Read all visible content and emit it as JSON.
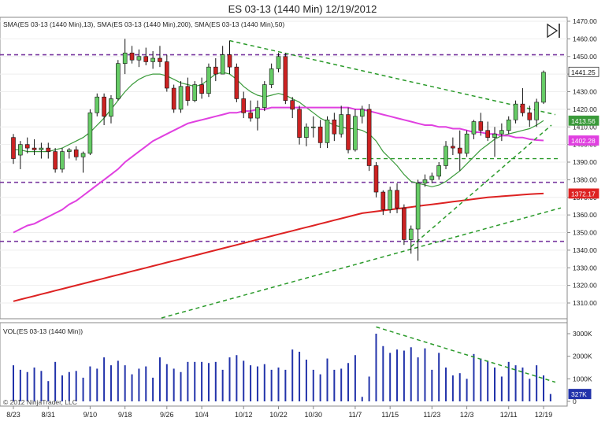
{
  "window": {
    "title": "ES 03-13 (1440 Min)  12/19/2012"
  },
  "price_panel": {
    "indicator_label": "SMA(ES 03-13 (1440 Min),13), SMA(ES 03-13 (1440 Min),200), SMA(ES 03-13 (1440 Min),50)",
    "last_price": "1441.25",
    "sma13_value": "1413.56",
    "sma50_value": "1402.28",
    "sma200_value": "1372.17",
    "horizontal_levels": [
      1451,
      1378.5,
      1345
    ],
    "support_level": 1392
  },
  "volume_panel": {
    "label": "VOL(ES 03-13 (1440 Min))",
    "last_volume": "327K",
    "copyright": "© 2012 NinjaTrader, LLC",
    "y_ticks": [
      "3000K",
      "2000K",
      "1000K",
      "0"
    ]
  },
  "colors": {
    "up": "#66cc66",
    "down": "#cc2222",
    "sma13": "#3a9a3a",
    "sma50": "#e040e0",
    "sma200": "#dd2222",
    "trendline": "#2a9a2a",
    "level": "#7a3aa0",
    "volume": "#2233aa"
  },
  "chart_data": {
    "type": "candlestick",
    "title": "ES 03-13 (1440 Min)  12/19/2012",
    "x_tick_labels": [
      "8/23",
      "8/31",
      "9/10",
      "9/18",
      "9/26",
      "10/4",
      "10/12",
      "10/22",
      "10/30",
      "11/7",
      "11/15",
      "11/23",
      "12/3",
      "12/11",
      "12/19"
    ],
    "y_tick_labels": [
      "1470.00",
      "1460.00",
      "1450.00",
      "1440.00",
      "1430.00",
      "1420.00",
      "1410.00",
      "1400.00",
      "1390.00",
      "1380.00",
      "1370.00",
      "1360.00",
      "1350.00",
      "1340.00",
      "1330.00",
      "1320.00",
      "1310.00"
    ],
    "ylim": [
      1300,
      1472
    ],
    "candles_ohlc": [
      [
        1404,
        1406,
        1389,
        1392
      ],
      [
        1394,
        1402,
        1386,
        1400
      ],
      [
        1400,
        1404,
        1395,
        1398
      ],
      [
        1398,
        1403,
        1394,
        1397
      ],
      [
        1397,
        1401,
        1392,
        1398
      ],
      [
        1398,
        1401,
        1392,
        1396
      ],
      [
        1396,
        1398,
        1384,
        1386
      ],
      [
        1386,
        1398,
        1384,
        1396
      ],
      [
        1396,
        1398,
        1392,
        1397
      ],
      [
        1397,
        1399,
        1391,
        1393
      ],
      [
        1393,
        1396,
        1384,
        1395
      ],
      [
        1395,
        1420,
        1394,
        1418
      ],
      [
        1418,
        1429,
        1416,
        1427
      ],
      [
        1427,
        1429,
        1411,
        1416
      ],
      [
        1416,
        1428,
        1412,
        1426
      ],
      [
        1426,
        1448,
        1425,
        1446
      ],
      [
        1446,
        1460,
        1440,
        1452
      ],
      [
        1452,
        1456,
        1446,
        1448
      ],
      [
        1448,
        1454,
        1444,
        1450
      ],
      [
        1450,
        1455,
        1445,
        1447
      ],
      [
        1447,
        1453,
        1443,
        1449
      ],
      [
        1449,
        1456,
        1444,
        1447
      ],
      [
        1447,
        1451,
        1430,
        1432
      ],
      [
        1432,
        1434,
        1418,
        1420
      ],
      [
        1420,
        1436,
        1418,
        1433
      ],
      [
        1433,
        1438,
        1422,
        1425
      ],
      [
        1425,
        1436,
        1424,
        1434
      ],
      [
        1434,
        1438,
        1426,
        1429
      ],
      [
        1429,
        1446,
        1427,
        1444
      ],
      [
        1444,
        1449,
        1436,
        1440
      ],
      [
        1440,
        1456,
        1440,
        1451
      ],
      [
        1451,
        1459,
        1440,
        1444
      ],
      [
        1444,
        1446,
        1424,
        1426
      ],
      [
        1426,
        1430,
        1415,
        1418
      ],
      [
        1418,
        1425,
        1413,
        1415
      ],
      [
        1415,
        1425,
        1408,
        1421
      ],
      [
        1421,
        1436,
        1419,
        1434
      ],
      [
        1434,
        1446,
        1432,
        1443
      ],
      [
        1443,
        1452,
        1441,
        1450
      ],
      [
        1450,
        1452,
        1423,
        1425
      ],
      [
        1425,
        1427,
        1415,
        1420
      ],
      [
        1420,
        1422,
        1400,
        1404
      ],
      [
        1404,
        1412,
        1399,
        1410
      ],
      [
        1410,
        1416,
        1404,
        1410
      ],
      [
        1410,
        1414,
        1398,
        1401
      ],
      [
        1401,
        1416,
        1398,
        1414
      ],
      [
        1414,
        1418,
        1402,
        1406
      ],
      [
        1406,
        1422,
        1404,
        1417
      ],
      [
        1417,
        1421,
        1395,
        1397
      ],
      [
        1397,
        1420,
        1396,
        1416
      ],
      [
        1416,
        1422,
        1412,
        1420
      ],
      [
        1420,
        1423,
        1385,
        1388
      ],
      [
        1388,
        1390,
        1370,
        1373
      ],
      [
        1373,
        1374,
        1360,
        1363
      ],
      [
        1363,
        1376,
        1361,
        1374
      ],
      [
        1374,
        1378,
        1361,
        1364
      ],
      [
        1364,
        1366,
        1343,
        1346
      ],
      [
        1346,
        1354,
        1338,
        1352
      ],
      [
        1352,
        1380,
        1334,
        1378
      ],
      [
        1378,
        1383,
        1376,
        1380
      ],
      [
        1380,
        1384,
        1378,
        1382
      ],
      [
        1382,
        1390,
        1380,
        1388
      ],
      [
        1388,
        1402,
        1386,
        1399
      ],
      [
        1399,
        1404,
        1394,
        1398
      ],
      [
        1398,
        1408,
        1385,
        1395
      ],
      [
        1395,
        1408,
        1393,
        1406
      ],
      [
        1406,
        1414,
        1403,
        1413
      ],
      [
        1413,
        1418,
        1405,
        1408
      ],
      [
        1408,
        1413,
        1402,
        1404
      ],
      [
        1404,
        1410,
        1393,
        1406
      ],
      [
        1406,
        1412,
        1402,
        1408
      ],
      [
        1408,
        1416,
        1406,
        1414
      ],
      [
        1414,
        1425,
        1412,
        1423
      ],
      [
        1423,
        1432,
        1416,
        1418
      ],
      [
        1418,
        1422,
        1410,
        1414
      ],
      [
        1414,
        1426,
        1410,
        1424
      ],
      [
        1424,
        1442,
        1423,
        1441
      ]
    ],
    "series": [
      {
        "name": "SMA(13)",
        "values": [
          1397,
          1397,
          1396,
          1396,
          1396,
          1396,
          1397,
          1398,
          1400,
          1402,
          1404,
          1407,
          1411,
          1415,
          1420,
          1425,
          1430,
          1434,
          1437,
          1439,
          1440,
          1440,
          1439,
          1437,
          1435,
          1434,
          1433,
          1434,
          1437,
          1440,
          1441,
          1440,
          1437,
          1433,
          1430,
          1428,
          1427,
          1428,
          1429,
          1428,
          1426,
          1424,
          1421,
          1418,
          1415,
          1413,
          1411,
          1410,
          1409,
          1409,
          1408,
          1406,
          1402,
          1396,
          1392,
          1388,
          1383,
          1379,
          1378,
          1377,
          1376,
          1377,
          1379,
          1382,
          1385,
          1389,
          1393,
          1397,
          1400,
          1403,
          1405,
          1406,
          1407,
          1408,
          1409,
          1411,
          1413.56
        ]
      },
      {
        "name": "SMA(50)",
        "values": [
          1350,
          1352,
          1354,
          1355,
          1357,
          1359,
          1361,
          1363,
          1366,
          1368,
          1371,
          1374,
          1377,
          1380,
          1383,
          1386,
          1390,
          1393,
          1396,
          1399,
          1402,
          1404,
          1406,
          1408,
          1410,
          1412,
          1413,
          1414,
          1415,
          1416,
          1417,
          1418,
          1418,
          1419,
          1419,
          1420,
          1420,
          1421,
          1421,
          1421,
          1421,
          1421,
          1421,
          1421,
          1421,
          1421,
          1421,
          1421,
          1421,
          1420,
          1420,
          1419,
          1418,
          1417,
          1416,
          1415,
          1414,
          1413,
          1412,
          1411,
          1411,
          1410,
          1410,
          1409,
          1409,
          1408,
          1407,
          1407,
          1406,
          1406,
          1405,
          1405,
          1404,
          1404,
          1403,
          1402.5,
          1402.28
        ]
      },
      {
        "name": "SMA(200)",
        "values": [
          1311,
          1312,
          1313,
          1314,
          1315,
          1316,
          1317,
          1318,
          1319,
          1320,
          1321,
          1322,
          1323,
          1324,
          1325,
          1326,
          1327,
          1328,
          1329,
          1330,
          1331,
          1332,
          1333,
          1334,
          1335,
          1336,
          1337,
          1338,
          1339,
          1340,
          1341,
          1342,
          1343,
          1344,
          1345,
          1346,
          1347,
          1348,
          1349,
          1350,
          1351,
          1352,
          1353,
          1354,
          1355,
          1356,
          1357,
          1358,
          1359,
          1360,
          1361,
          1361.5,
          1362,
          1362.5,
          1363,
          1363.5,
          1364,
          1364.5,
          1365,
          1365.5,
          1366,
          1366.5,
          1367,
          1367.5,
          1368,
          1368.5,
          1369,
          1369.5,
          1370,
          1370.3,
          1370.6,
          1370.9,
          1371.2,
          1371.5,
          1371.8,
          1372,
          1372.17
        ]
      }
    ],
    "volume_k": [
      1600,
      1400,
      1300,
      1500,
      1350,
      900,
      1750,
      1150,
      1300,
      1350,
      1050,
      1550,
      1450,
      1950,
      1600,
      1800,
      1600,
      1200,
      1450,
      1550,
      1050,
      1950,
      1650,
      1450,
      1300,
      1750,
      1750,
      1750,
      1700,
      1750,
      1400,
      1950,
      2050,
      1800,
      1600,
      1550,
      1650,
      1400,
      1500,
      1400,
      2300,
      2200,
      1850,
      1400,
      1200,
      1900,
      1400,
      1450,
      1700,
      2050,
      200,
      1100,
      3000,
      2450,
      2150,
      2300,
      2250,
      2400,
      1950,
      2350,
      1400,
      2150,
      1500,
      1150,
      1250,
      1000,
      2100,
      1900,
      1800,
      1500,
      1100,
      1750,
      1600,
      1500,
      1000,
      1600,
      1150,
      327
    ],
    "volume_ylim": [
      0,
      3300
    ]
  }
}
